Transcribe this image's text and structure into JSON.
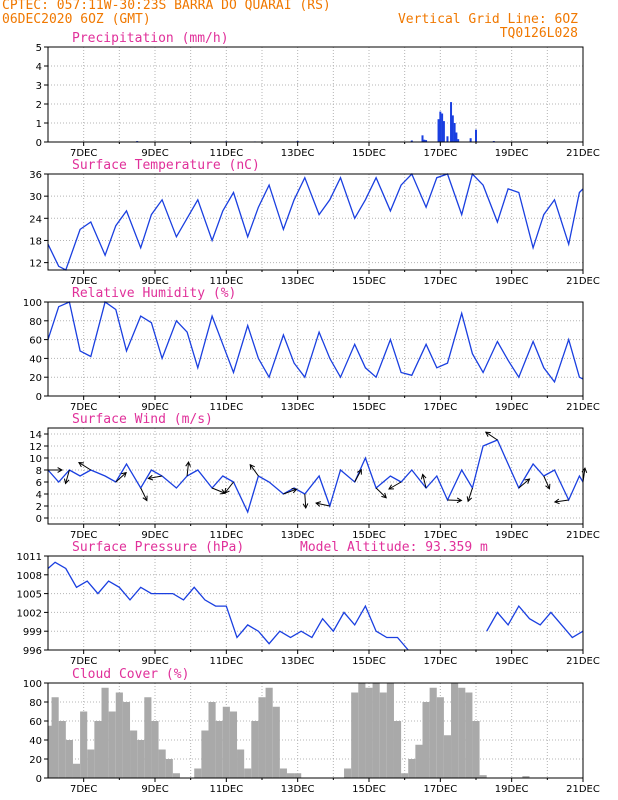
{
  "header": {
    "line1_left": "CPTEC:  057:11W-30:23S  BARRA DO QUARAI (RS)",
    "line2_left": "06DEC2020 6OZ (GMT)",
    "line2_right": "Vertical Grid Line: 6OZ",
    "line3_right": "TQ0126L028"
  },
  "colors": {
    "header_text": "#f07800",
    "panel_title": "#e0309a",
    "series": "#1a3fe0",
    "cloud_fill": "#a9a9a9",
    "grid": "#b4b4b4"
  },
  "x_axis": {
    "start_day": 6,
    "end_day": 21,
    "tick_days": [
      7,
      9,
      11,
      13,
      15,
      17,
      19,
      21
    ],
    "tick_labels": [
      "7DEC",
      "9DEC",
      "11DEC",
      "13DEC",
      "15DEC",
      "17DEC",
      "19DEC",
      "21DEC"
    ]
  },
  "chart_data": [
    {
      "type": "bar",
      "title": "Precipitation (mm/h)",
      "ylim": [
        0,
        5
      ],
      "yticks": [
        0,
        1,
        2,
        3,
        4,
        5
      ],
      "grid": true,
      "x": [
        8.5,
        10.0,
        11.0,
        11.8,
        13.0,
        16.2,
        16.5,
        16.55,
        16.6,
        16.95,
        17.0,
        17.05,
        17.1,
        17.2,
        17.3,
        17.35,
        17.4,
        17.45,
        17.5,
        17.85,
        18.0,
        18.5
      ],
      "values": [
        0.05,
        0.03,
        0.04,
        0.03,
        0.05,
        0.08,
        0.35,
        0.12,
        0.1,
        1.2,
        1.6,
        1.5,
        1.1,
        0.3,
        2.1,
        1.4,
        1.0,
        0.5,
        0.15,
        0.2,
        0.65,
        0.05
      ]
    },
    {
      "type": "line",
      "title": "Surface Temperature (nC)",
      "ylim": [
        10,
        36
      ],
      "yticks": [
        12,
        18,
        24,
        30,
        36
      ],
      "grid": true,
      "x": [
        6.0,
        6.3,
        6.5,
        6.9,
        7.2,
        7.6,
        7.9,
        8.2,
        8.6,
        8.9,
        9.2,
        9.6,
        9.9,
        10.2,
        10.6,
        10.9,
        11.2,
        11.6,
        11.9,
        12.2,
        12.6,
        12.9,
        13.2,
        13.6,
        13.9,
        14.2,
        14.6,
        14.9,
        15.2,
        15.6,
        15.9,
        16.2,
        16.6,
        16.9,
        17.2,
        17.6,
        17.9,
        18.2,
        18.6,
        18.9,
        19.2,
        19.6,
        19.9,
        20.2,
        20.6,
        20.9,
        21.0
      ],
      "y": [
        17,
        11,
        10,
        21,
        23,
        14,
        22,
        26,
        16,
        25,
        29,
        19,
        24,
        29,
        18,
        26,
        31,
        19,
        27,
        33,
        21,
        29,
        35,
        25,
        29,
        35,
        24,
        29,
        35,
        26,
        33,
        36,
        27,
        35,
        36,
        25,
        36,
        33,
        23,
        32,
        31,
        16,
        25,
        29,
        17,
        31,
        32
      ]
    },
    {
      "type": "line",
      "title": "Relative Humidity (%)",
      "ylim": [
        0,
        100
      ],
      "yticks": [
        0,
        20,
        40,
        60,
        80,
        100
      ],
      "grid": true,
      "x": [
        6.0,
        6.3,
        6.6,
        6.9,
        7.2,
        7.6,
        7.9,
        8.2,
        8.6,
        8.9,
        9.2,
        9.6,
        9.9,
        10.2,
        10.6,
        10.9,
        11.2,
        11.6,
        11.9,
        12.2,
        12.6,
        12.9,
        13.2,
        13.6,
        13.9,
        14.2,
        14.6,
        14.9,
        15.2,
        15.6,
        15.9,
        16.2,
        16.6,
        16.9,
        17.2,
        17.6,
        17.9,
        18.2,
        18.6,
        18.9,
        19.2,
        19.6,
        19.9,
        20.2,
        20.6,
        20.9,
        21.0
      ],
      "y": [
        60,
        95,
        100,
        48,
        42,
        100,
        92,
        48,
        85,
        78,
        40,
        80,
        68,
        30,
        85,
        55,
        25,
        75,
        40,
        20,
        65,
        35,
        20,
        68,
        40,
        20,
        55,
        30,
        20,
        60,
        25,
        22,
        55,
        30,
        35,
        88,
        45,
        25,
        58,
        38,
        20,
        58,
        30,
        15,
        60,
        20,
        18
      ]
    },
    {
      "type": "line",
      "title": "Surface Wind (m/s)",
      "ylim": [
        -1,
        15
      ],
      "yticks": [
        0,
        2,
        4,
        6,
        8,
        10,
        12,
        14
      ],
      "grid": true,
      "x": [
        6.0,
        6.3,
        6.6,
        6.9,
        7.2,
        7.6,
        7.9,
        8.2,
        8.6,
        8.9,
        9.2,
        9.6,
        9.9,
        10.2,
        10.6,
        10.9,
        11.2,
        11.6,
        11.9,
        12.2,
        12.6,
        12.9,
        13.2,
        13.6,
        13.9,
        14.2,
        14.6,
        14.9,
        15.2,
        15.6,
        15.9,
        16.2,
        16.6,
        16.9,
        17.2,
        17.6,
        17.9,
        18.2,
        18.6,
        18.9,
        19.2,
        19.6,
        19.9,
        20.2,
        20.6,
        20.9,
        21.0
      ],
      "y": [
        8,
        6,
        8,
        7,
        8,
        7,
        6,
        9,
        5,
        8,
        7,
        5,
        7,
        8,
        5,
        7,
        6,
        1,
        7,
        6,
        4,
        5,
        4,
        7,
        2,
        8,
        6,
        10,
        5,
        7,
        6,
        8,
        5,
        7,
        3,
        8,
        5,
        12,
        13,
        9,
        5,
        9,
        7,
        8,
        3,
        7,
        6
      ]
    },
    {
      "type": "line",
      "title": "Surface Pressure (hPa)",
      "annotation": "Model Altitude: 93.359 m",
      "ylim": [
        996,
        1011
      ],
      "yticks": [
        996,
        999,
        1002,
        1005,
        1008,
        1011
      ],
      "grid": true,
      "x": [
        6.0,
        6.2,
        6.5,
        6.8,
        7.1,
        7.4,
        7.7,
        8.0,
        8.3,
        8.6,
        8.9,
        9.2,
        9.5,
        9.8,
        10.1,
        10.4,
        10.7,
        11.0,
        11.3,
        11.6,
        11.9,
        12.2,
        12.5,
        12.8,
        13.1,
        13.4,
        13.7,
        14.0,
        14.3,
        14.6,
        14.9,
        15.2,
        15.5,
        15.8,
        16.1
      ],
      "y": [
        1009,
        1010,
        1009,
        1006,
        1007,
        1005,
        1007,
        1006,
        1004,
        1006,
        1005,
        1005,
        1005,
        1004,
        1006,
        1004,
        1003,
        1003,
        998,
        1000,
        999,
        997,
        999,
        998,
        999,
        998,
        1001,
        999,
        1002,
        1000,
        1003,
        999,
        998,
        998,
        996
      ],
      "series2_x": [
        18.3,
        18.6,
        18.9,
        19.2,
        19.5,
        19.8,
        20.1,
        20.4,
        20.7,
        21.0
      ],
      "series2_y": [
        999,
        1002,
        1000,
        1003,
        1001,
        1000,
        1002,
        1000,
        998,
        999
      ]
    },
    {
      "type": "area",
      "title": "Cloud Cover (%)",
      "ylim": [
        0,
        100
      ],
      "yticks": [
        0,
        20,
        40,
        60,
        80,
        100
      ],
      "grid": true,
      "x": [
        6.0,
        6.1,
        6.3,
        6.5,
        6.7,
        6.9,
        7.1,
        7.3,
        7.5,
        7.7,
        7.9,
        8.1,
        8.3,
        8.5,
        8.7,
        8.9,
        9.1,
        9.3,
        9.5,
        9.7,
        9.9,
        10.1,
        10.3,
        10.5,
        10.7,
        10.9,
        11.1,
        11.3,
        11.5,
        11.7,
        11.9,
        12.1,
        12.3,
        12.5,
        12.7,
        12.9,
        13.1,
        13.3,
        13.5,
        13.7,
        13.9,
        14.1,
        14.3,
        14.5,
        14.7,
        14.9,
        15.1,
        15.3,
        15.5,
        15.7,
        15.9,
        16.1,
        16.3,
        16.5,
        16.7,
        16.9,
        17.1,
        17.3,
        17.5,
        17.7,
        17.9,
        18.1,
        18.3,
        18.5,
        18.7,
        18.9,
        19.1,
        19.3,
        19.5,
        19.7,
        19.9,
        20.1,
        20.3,
        20.5,
        20.7,
        20.9,
        21.0
      ],
      "y": [
        55,
        85,
        60,
        40,
        15,
        70,
        30,
        60,
        95,
        70,
        90,
        80,
        50,
        40,
        85,
        60,
        30,
        20,
        5,
        0,
        0,
        10,
        50,
        80,
        60,
        75,
        70,
        30,
        10,
        60,
        85,
        95,
        75,
        10,
        5,
        5,
        0,
        0,
        0,
        0,
        0,
        0,
        10,
        90,
        100,
        95,
        100,
        90,
        100,
        60,
        5,
        20,
        35,
        80,
        95,
        85,
        45,
        100,
        95,
        90,
        60,
        3,
        0,
        0,
        0,
        0,
        0,
        2,
        0,
        0,
        0,
        0,
        0,
        0,
        0,
        0,
        0
      ]
    }
  ]
}
